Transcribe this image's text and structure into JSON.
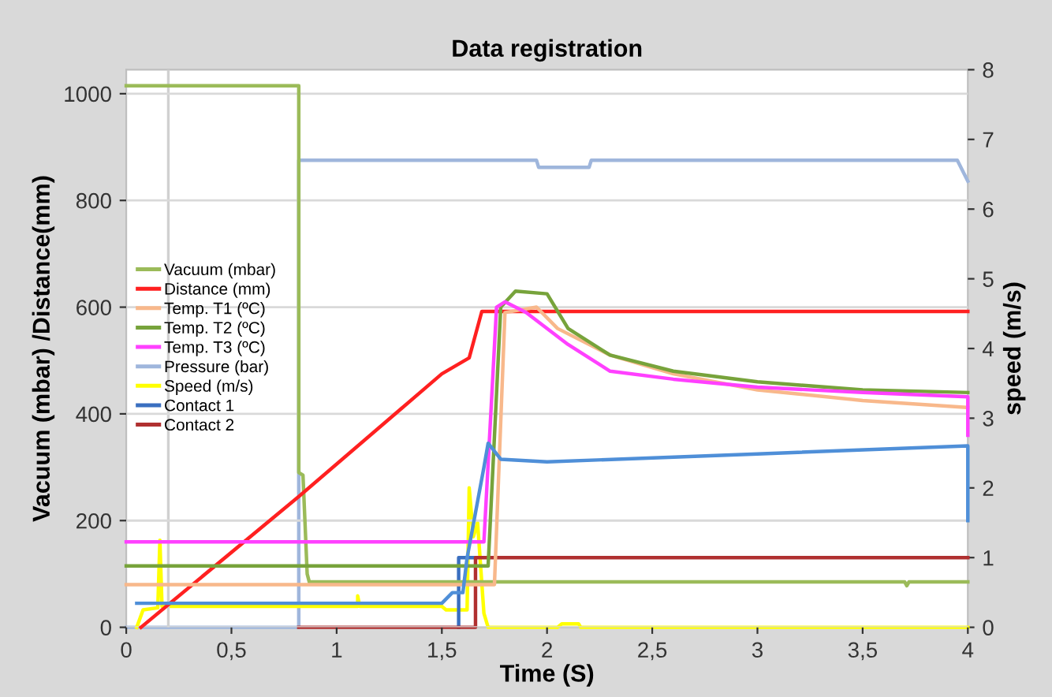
{
  "chart_data": {
    "type": "line",
    "title": "Data registration",
    "xlabel": "Time (S)",
    "ylabel": "Vacuum (mbar) /Distance(mm)",
    "y2label": "speed (m/s)",
    "xlim": [
      0,
      4
    ],
    "xticks": [
      0,
      {
        "value": 0.5,
        "label": "0,5"
      },
      1,
      {
        "value": 1.5,
        "label": "1,5"
      },
      2,
      {
        "value": 2.5,
        "label": "2,5"
      },
      3,
      {
        "value": 3.5,
        "label": "3,5"
      },
      4
    ],
    "ylim": [
      0,
      1045
    ],
    "yticks": [
      0,
      200,
      400,
      600,
      800,
      1000
    ],
    "y2lim": [
      0,
      8
    ],
    "y2ticks": [
      0,
      1,
      2,
      3,
      4,
      5,
      6,
      7,
      8
    ],
    "grid": "y",
    "legend": "left",
    "marker": "none",
    "line_style": "solid",
    "ref_lines": [
      {
        "axis": "x",
        "value": 0.2,
        "color": "#d0d0d0"
      }
    ],
    "series": [
      {
        "name": "Vacuum (mbar)",
        "color": "#9bbb59",
        "x": [
          0,
          0.82,
          0.82,
          0.84,
          0.86,
          0.87,
          3.7,
          3.71,
          3.72,
          4
        ],
        "values": [
          1015,
          1015,
          290,
          285,
          100,
          85,
          85,
          78,
          85,
          85
        ]
      },
      {
        "name": "Distance (mm)",
        "color": "#ff2020",
        "x": [
          0.07,
          0.82,
          1.5,
          1.63,
          1.69,
          4
        ],
        "values": [
          0,
          245,
          475,
          505,
          592,
          592
        ]
      },
      {
        "name": "Temp. T1 (ºC)",
        "color": "#f8b88b",
        "x": [
          0,
          1.75,
          1.8,
          1.95,
          2.05,
          2.3,
          2.6,
          3.0,
          3.5,
          4
        ],
        "values": [
          80,
          80,
          590,
          600,
          560,
          510,
          475,
          445,
          425,
          412
        ]
      },
      {
        "name": "Temp. T2 (ºC)",
        "color": "#77a33b",
        "x": [
          0,
          1.72,
          1.78,
          1.85,
          2.0,
          2.1,
          2.3,
          2.6,
          3.0,
          3.5,
          4
        ],
        "values": [
          115,
          115,
          600,
          630,
          625,
          560,
          510,
          480,
          460,
          445,
          440
        ]
      },
      {
        "name": "Temp. T3 (ºC)",
        "color": "#ff40ff",
        "x": [
          0,
          1.7,
          1.76,
          1.8,
          1.9,
          2.1,
          2.3,
          2.6,
          3.0,
          3.5,
          4,
          4
        ],
        "values": [
          160,
          160,
          600,
          610,
          590,
          530,
          480,
          465,
          450,
          440,
          432,
          360
        ]
      },
      {
        "name": "Pressure (bar)",
        "color": "#9fb6dc",
        "axis": "y2",
        "x": [
          0,
          0.82,
          0.82,
          1.95,
          1.96,
          2.2,
          2.21,
          3.95,
          4
        ],
        "values": [
          0,
          0,
          6.7,
          6.7,
          6.6,
          6.6,
          6.7,
          6.7,
          6.4
        ]
      },
      {
        "name": "Speed (m/s)",
        "color": "#ffff00",
        "axis": "y2",
        "x": [
          0.05,
          0.08,
          0.15,
          0.16,
          0.17,
          1.1,
          1.1,
          1.11,
          1.5,
          1.52,
          1.62,
          1.63,
          1.65,
          1.67,
          1.7,
          1.72,
          2.05,
          2.07,
          2.15,
          2.16,
          4
        ],
        "values": [
          0,
          0.25,
          0.28,
          1.25,
          0.3,
          0.3,
          0.45,
          0.3,
          0.3,
          0.25,
          0.25,
          2.0,
          1.3,
          1.5,
          0.2,
          0,
          0,
          0.05,
          0.05,
          0,
          0
        ]
      },
      {
        "name": "Contact 1",
        "color": "#3a6fc0",
        "axis": "y2",
        "x": [
          1.58,
          1.58,
          1.66
        ],
        "values": [
          0,
          1,
          1
        ]
      },
      {
        "name": "Contact 2",
        "color": "#b03030",
        "axis": "y2",
        "x": [
          0.82,
          1.66,
          1.66,
          4
        ],
        "values": [
          0,
          0,
          1,
          1
        ]
      },
      {
        "color": "#4f8fd8",
        "x": [
          0.05,
          1.5,
          1.55,
          1.6,
          1.62,
          1.7,
          1.72,
          1.78,
          2.0,
          3.0,
          4,
          4
        ],
        "values": [
          45,
          45,
          65,
          65,
          130,
          300,
          345,
          315,
          310,
          325,
          340,
          200
        ]
      }
    ]
  }
}
